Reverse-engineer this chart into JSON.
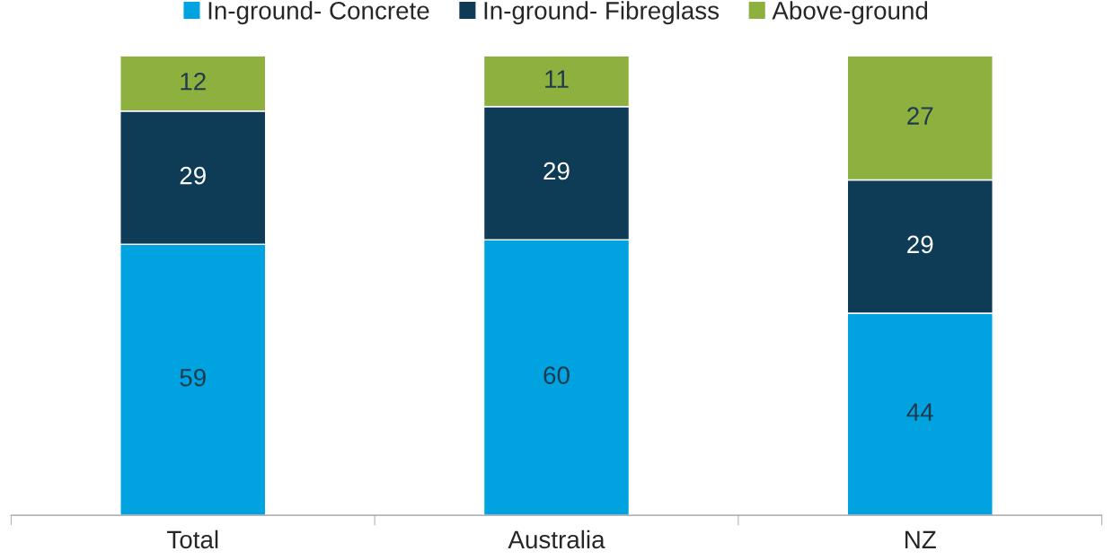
{
  "chart_data": {
    "type": "bar",
    "stacked": true,
    "data_labels": true,
    "legend": "top",
    "grid": false,
    "categories": [
      "Total",
      "Australia",
      "NZ"
    ],
    "series": [
      {
        "name": "In-ground- Concrete",
        "color": "#00a3e0",
        "values": [
          59,
          60,
          44
        ]
      },
      {
        "name": "In-ground- Fibreglass",
        "color": "#0e3b55",
        "values": [
          29,
          29,
          29
        ]
      },
      {
        "name": "Above-ground",
        "color": "#8db03e",
        "values": [
          12,
          11,
          27
        ]
      }
    ]
  }
}
